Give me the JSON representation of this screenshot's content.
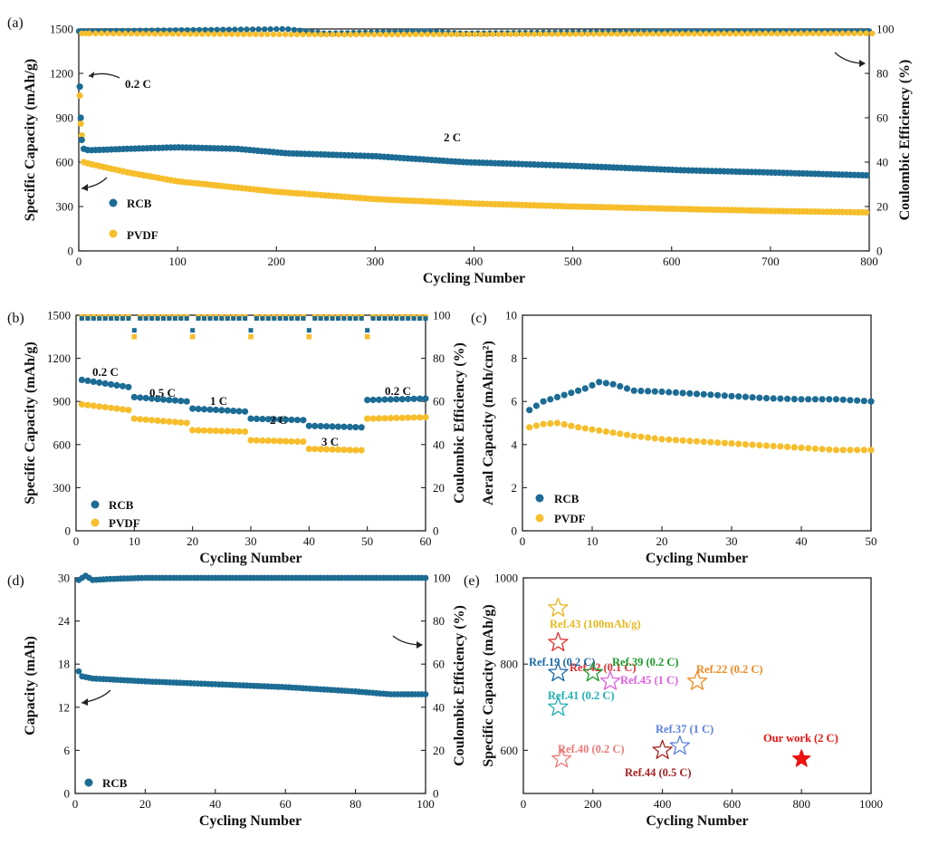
{
  "colors": {
    "rcb": "#1c6c94",
    "pvdf": "#f7be2c"
  },
  "chart_data": [
    {
      "panel": "(a)",
      "type": "scatter",
      "xlabel": "Cycling Number",
      "ylabel": "Specific Capacity (mAh/g)",
      "y2label": "Coulombic Efficiency (%)",
      "xlim": [
        0,
        800
      ],
      "ylim": [
        0,
        1500
      ],
      "y2lim": [
        0,
        100
      ],
      "xticks": [
        0,
        100,
        200,
        300,
        400,
        500,
        600,
        700,
        800
      ],
      "yticks": [
        0,
        300,
        600,
        900,
        1200,
        1500
      ],
      "y2ticks": [
        0,
        20,
        40,
        60,
        80,
        100
      ],
      "legend": [
        "RCB",
        "PVDF"
      ],
      "annotations": [
        "0.2 C",
        "2 C"
      ],
      "series": [
        {
          "name": "RCB",
          "axis": "left",
          "x": [
            1,
            2,
            3,
            5,
            10,
            50,
            100,
            160,
            210,
            300,
            390,
            500,
            612,
            700,
            800
          ],
          "values": [
            1110,
            900,
            750,
            690,
            680,
            690,
            700,
            690,
            660,
            640,
            600,
            575,
            545,
            530,
            510
          ]
        },
        {
          "name": "PVDF",
          "axis": "left",
          "x": [
            1,
            2,
            3,
            5,
            10,
            50,
            100,
            200,
            300,
            400,
            500,
            600,
            700,
            800
          ],
          "values": [
            1050,
            860,
            780,
            600,
            590,
            530,
            470,
            400,
            350,
            320,
            300,
            285,
            270,
            260
          ]
        },
        {
          "name": "RCB CE",
          "axis": "right",
          "x": [
            0,
            210,
            250,
            350,
            390,
            612,
            800
          ],
          "values": [
            99,
            100,
            98,
            99,
            98,
            99,
            99
          ]
        },
        {
          "name": "PVDF CE",
          "axis": "right",
          "x": [
            0,
            250,
            800
          ],
          "values": [
            98,
            97.5,
            98
          ]
        }
      ]
    },
    {
      "panel": "(b)",
      "type": "scatter",
      "xlabel": "Cycling Number",
      "ylabel": "Specific Capacity (mAh/g)",
      "y2label": "Coulombic Efficiency (%)",
      "xlim": [
        0,
        60
      ],
      "ylim": [
        0,
        1500
      ],
      "y2lim": [
        0,
        100
      ],
      "xticks": [
        0,
        10,
        20,
        30,
        40,
        50,
        60
      ],
      "yticks": [
        0,
        300,
        600,
        900,
        1200,
        1500
      ],
      "y2ticks": [
        0,
        20,
        40,
        60,
        80,
        100
      ],
      "legend": [
        "RCB",
        "PVDF"
      ],
      "rate_labels": [
        "0.2 C",
        "0.5 C",
        "1 C",
        "2 C",
        "3 C",
        "0.2 C"
      ],
      "series": [
        {
          "name": "RCB",
          "axis": "left",
          "x": [
            1,
            9,
            10,
            19,
            20,
            29,
            30,
            39,
            40,
            49,
            50,
            60
          ],
          "values": [
            1050,
            1000,
            930,
            900,
            850,
            830,
            780,
            770,
            730,
            720,
            910,
            920
          ]
        },
        {
          "name": "PVDF",
          "axis": "left",
          "x": [
            1,
            9,
            10,
            19,
            20,
            29,
            30,
            39,
            40,
            49,
            50,
            60
          ],
          "values": [
            880,
            840,
            780,
            750,
            700,
            690,
            630,
            620,
            570,
            560,
            780,
            790
          ]
        },
        {
          "name": "RCB CE",
          "axis": "right",
          "x": [
            1,
            60
          ],
          "values": [
            98.5,
            98.5
          ]
        },
        {
          "name": "PVDF CE",
          "axis": "right",
          "x": [
            1,
            60
          ],
          "values": [
            99,
            99
          ]
        }
      ]
    },
    {
      "panel": "(c)",
      "type": "scatter",
      "xlabel": "Cycling Number",
      "ylabel": "Aeral Capacity (mAh/cm²)",
      "xlim": [
        0,
        50
      ],
      "ylim": [
        0,
        10
      ],
      "xticks": [
        0,
        10,
        20,
        30,
        40,
        50
      ],
      "yticks": [
        0,
        2,
        4,
        6,
        8,
        10
      ],
      "legend": [
        "RCB",
        "PVDF"
      ],
      "series": [
        {
          "name": "RCB",
          "x": [
            1,
            3,
            6,
            9,
            11,
            13,
            16,
            20,
            25,
            30,
            35,
            40,
            45,
            50
          ],
          "values": [
            5.6,
            6.0,
            6.3,
            6.6,
            6.9,
            6.8,
            6.5,
            6.45,
            6.35,
            6.25,
            6.15,
            6.1,
            6.1,
            6.0
          ]
        },
        {
          "name": "PVDF",
          "x": [
            1,
            3,
            5,
            8,
            12,
            16,
            20,
            25,
            30,
            35,
            40,
            45,
            50
          ],
          "values": [
            4.8,
            4.95,
            5.0,
            4.8,
            4.6,
            4.4,
            4.25,
            4.15,
            4.05,
            3.95,
            3.85,
            3.75,
            3.75
          ]
        }
      ]
    },
    {
      "panel": "(d)",
      "type": "scatter",
      "xlabel": "Cycling Number",
      "ylabel": "Capacity (mAh)",
      "y2label": "Coulombic Efficiency (%)",
      "xlim": [
        0,
        100
      ],
      "ylim": [
        0,
        30
      ],
      "y2lim": [
        0,
        100
      ],
      "xticks": [
        0,
        20,
        40,
        60,
        80,
        100
      ],
      "yticks": [
        0,
        6,
        12,
        18,
        24,
        30
      ],
      "y2ticks": [
        0,
        20,
        40,
        60,
        80,
        100
      ],
      "legend": [
        "RCB"
      ],
      "series": [
        {
          "name": "RCB",
          "axis": "left",
          "x": [
            1,
            2,
            5,
            20,
            40,
            60,
            80,
            90,
            100
          ],
          "values": [
            17,
            16.3,
            16,
            15.6,
            15.2,
            14.8,
            14.2,
            13.8,
            13.8
          ]
        },
        {
          "name": "RCB CE",
          "axis": "right",
          "x": [
            1,
            3,
            5,
            10,
            20,
            40,
            60,
            80,
            100
          ],
          "values": [
            99,
            101,
            99,
            99.5,
            100,
            100,
            100,
            100,
            100
          ]
        }
      ]
    },
    {
      "panel": "(e)",
      "type": "scatter",
      "xlabel": "Cycling Number",
      "ylabel": "Specific Capacity (mAh/g)",
      "xlim": [
        0,
        1000
      ],
      "ylim": [
        500,
        1000
      ],
      "xticks": [
        0,
        200,
        400,
        600,
        800,
        1000
      ],
      "yticks": [
        600,
        800,
        1000
      ],
      "points": [
        {
          "label": "Ref.43 (100mAh/g)",
          "x": 100,
          "y": 930,
          "color": "#e8b820"
        },
        {
          "label": "Ref.42 (0.1 C)",
          "x": 100,
          "y": 850,
          "color": "#e03030"
        },
        {
          "label": "Ref.19 (0.2 C)",
          "x": 100,
          "y": 780,
          "color": "#1a6aa8"
        },
        {
          "label": "Ref.39 (0.2 C)",
          "x": 200,
          "y": 780,
          "color": "#1a9a2a"
        },
        {
          "label": "Ref.45 (1 C)",
          "x": 250,
          "y": 760,
          "color": "#e060e0"
        },
        {
          "label": "Ref.22 (0.2 C)",
          "x": 500,
          "y": 760,
          "color": "#f08a20"
        },
        {
          "label": "Ref.41 (0.2 C)",
          "x": 100,
          "y": 700,
          "color": "#20b0b0"
        },
        {
          "label": "Ref.37 (1 C)",
          "x": 450,
          "y": 610,
          "color": "#5a80e0"
        },
        {
          "label": "Ref.40 (0.2 C)",
          "x": 110,
          "y": 580,
          "color": "#f07878"
        },
        {
          "label": "Ref.44 (0.5 C)",
          "x": 400,
          "y": 600,
          "color": "#a82020"
        },
        {
          "label": "Our work (2 C)",
          "x": 800,
          "y": 580,
          "color": "#ee1111",
          "filled": true
        }
      ]
    }
  ]
}
